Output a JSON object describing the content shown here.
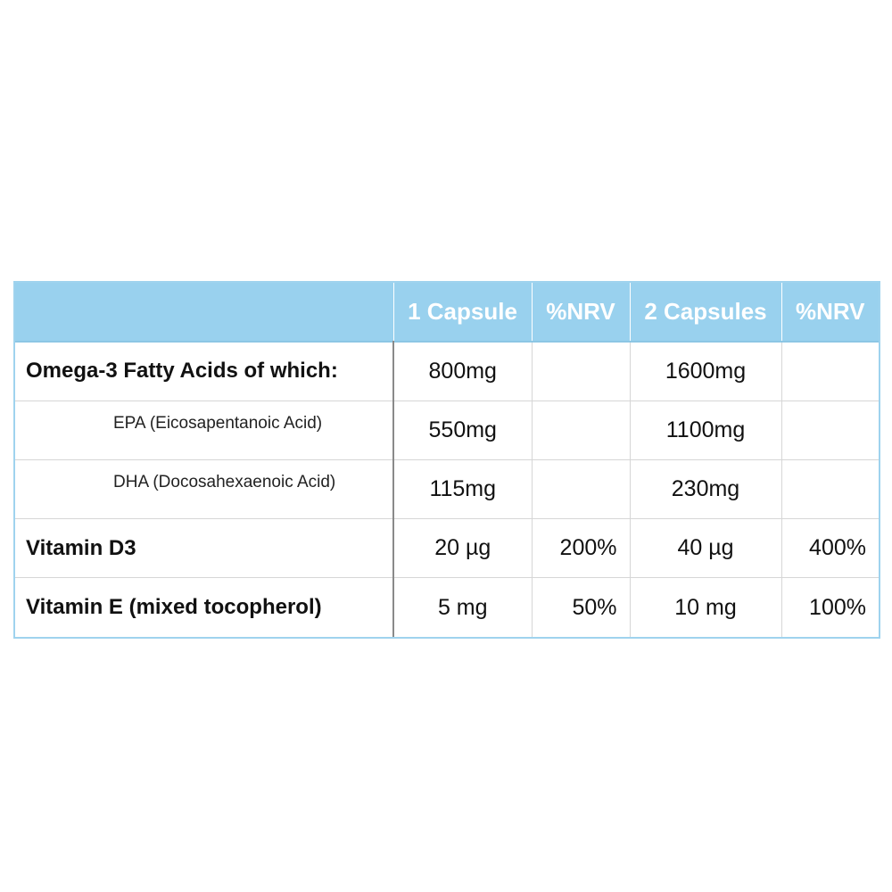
{
  "table": {
    "headers": [
      "",
      "1 Capsule",
      "%NRV",
      "2 Capsules",
      "%NRV"
    ],
    "rows": [
      {
        "name": "Omega-3 Fatty Acids of which:",
        "one": "800mg",
        "one_nrv": "",
        "two": "1600mg",
        "two_nrv": ""
      },
      {
        "name": "EPA (Eicosapentanoic Acid)",
        "one": "550mg",
        "one_nrv": "",
        "two": "1100mg",
        "two_nrv": ""
      },
      {
        "name": "DHA (Docosahexaenoic Acid)",
        "one": "115mg",
        "one_nrv": "",
        "two": "230mg",
        "two_nrv": ""
      },
      {
        "name": "Vitamin D3",
        "one": "20 µg",
        "one_nrv": "200%",
        "two": "40 µg",
        "two_nrv": "400%"
      },
      {
        "name": "Vitamin E (mixed tocopherol)",
        "one": "5 mg",
        "one_nrv": "50%",
        "two": "10 mg",
        "two_nrv": "100%"
      }
    ]
  },
  "colors": {
    "header_bg": "#99d1ee",
    "border": "#9fd3ee"
  }
}
